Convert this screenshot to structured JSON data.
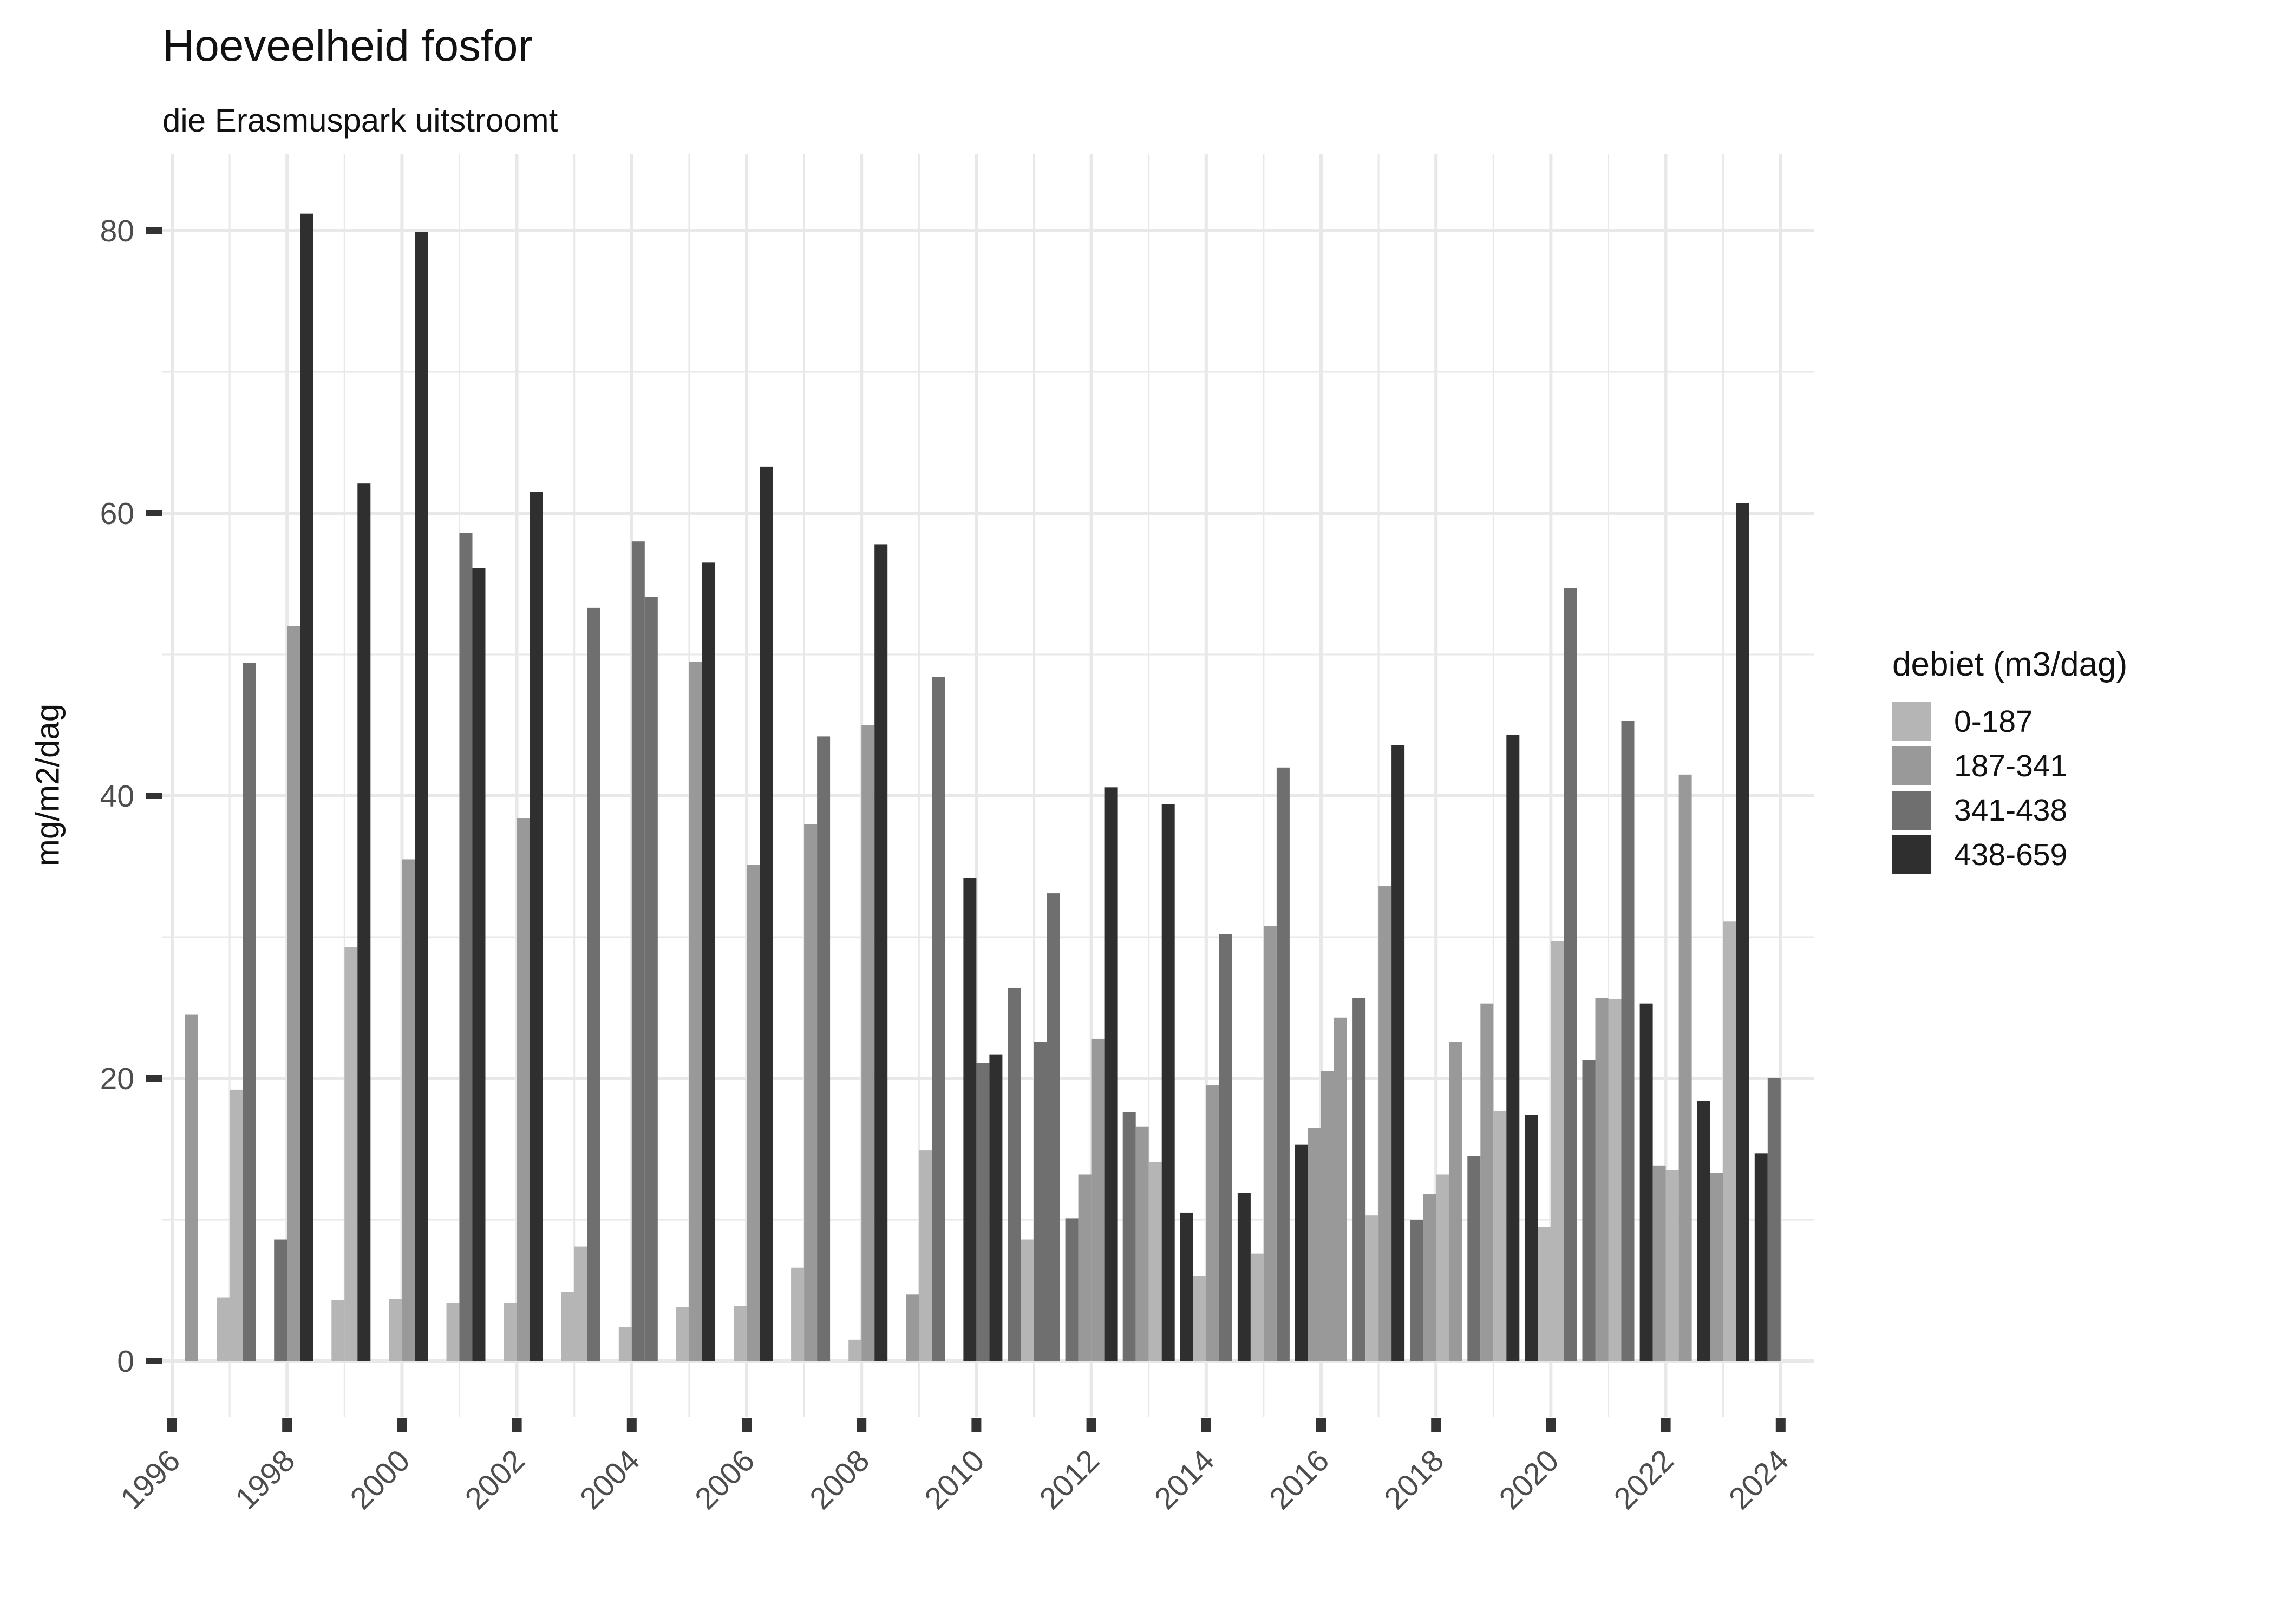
{
  "chart_data": {
    "type": "bar",
    "title": "Hoeveelheid fosfor",
    "subtitle": "die Erasmuspark uitstroomt",
    "xlabel": "",
    "ylabel": "mg/m2/dag",
    "ylim": [
      0,
      85
    ],
    "y_major_ticks": [
      0,
      20,
      40,
      60,
      80
    ],
    "y_minor_ticks": [
      10,
      30,
      50,
      70
    ],
    "x_tick_years": [
      1996,
      1998,
      2000,
      2002,
      2004,
      2006,
      2008,
      2010,
      2012,
      2014,
      2016,
      2018,
      2020,
      2022,
      2024
    ],
    "x_all_gridline_years": "every year 1996-2024, minor lines on odd years",
    "grid": true,
    "legend": {
      "title": "debiet (m3/dag)",
      "position": "right",
      "entries": [
        {
          "label": "0-187",
          "color": "#b5b5b5"
        },
        {
          "label": "187-341",
          "color": "#999999"
        },
        {
          "label": "341-438",
          "color": "#6f6f6f"
        },
        {
          "label": "438-659",
          "color": "#2f2f2f"
        }
      ]
    },
    "bar_note": "Each year holds up to 4 quarterly bars; slot = quarter position 1-4 within the year, cat = index into legend entries, value in mg/m2/dag",
    "years": [
      {
        "year": 1996,
        "bars": [
          {
            "slot": 4,
            "cat": 1,
            "value": 24.5
          }
        ]
      },
      {
        "year": 1997,
        "bars": [
          {
            "slot": 2,
            "cat": 0,
            "value": 4.5
          },
          {
            "slot": 3,
            "cat": 0,
            "value": 19.2
          },
          {
            "slot": 4,
            "cat": 2,
            "value": 49.4
          }
        ]
      },
      {
        "year": 1998,
        "bars": [
          {
            "slot": 2,
            "cat": 2,
            "value": 8.6
          },
          {
            "slot": 3,
            "cat": 1,
            "value": 52.0
          },
          {
            "slot": 4,
            "cat": 3,
            "value": 81.2
          }
        ]
      },
      {
        "year": 1999,
        "bars": [
          {
            "slot": 2,
            "cat": 0,
            "value": 4.3
          },
          {
            "slot": 3,
            "cat": 0,
            "value": 29.3
          },
          {
            "slot": 4,
            "cat": 3,
            "value": 62.1
          }
        ]
      },
      {
        "year": 2000,
        "bars": [
          {
            "slot": 2,
            "cat": 0,
            "value": 4.4
          },
          {
            "slot": 3,
            "cat": 1,
            "value": 35.5
          },
          {
            "slot": 4,
            "cat": 3,
            "value": 79.9
          }
        ]
      },
      {
        "year": 2001,
        "bars": [
          {
            "slot": 2,
            "cat": 0,
            "value": 4.1
          },
          {
            "slot": 3,
            "cat": 2,
            "value": 58.6
          },
          {
            "slot": 4,
            "cat": 3,
            "value": 56.1
          }
        ]
      },
      {
        "year": 2002,
        "bars": [
          {
            "slot": 2,
            "cat": 0,
            "value": 4.1
          },
          {
            "slot": 3,
            "cat": 1,
            "value": 38.4
          },
          {
            "slot": 4,
            "cat": 3,
            "value": 61.5
          }
        ]
      },
      {
        "year": 2003,
        "bars": [
          {
            "slot": 2,
            "cat": 0,
            "value": 4.9
          },
          {
            "slot": 3,
            "cat": 0,
            "value": 8.1
          },
          {
            "slot": 4,
            "cat": 2,
            "value": 53.3
          }
        ]
      },
      {
        "year": 2004,
        "bars": [
          {
            "slot": 2,
            "cat": 0,
            "value": 2.4
          },
          {
            "slot": 3,
            "cat": 2,
            "value": 58.0
          },
          {
            "slot": 4,
            "cat": 2,
            "value": 54.1
          }
        ]
      },
      {
        "year": 2005,
        "bars": [
          {
            "slot": 2,
            "cat": 0,
            "value": 3.8
          },
          {
            "slot": 3,
            "cat": 1,
            "value": 49.5
          },
          {
            "slot": 4,
            "cat": 3,
            "value": 56.5
          }
        ]
      },
      {
        "year": 2006,
        "bars": [
          {
            "slot": 2,
            "cat": 0,
            "value": 3.9
          },
          {
            "slot": 3,
            "cat": 1,
            "value": 35.1
          },
          {
            "slot": 4,
            "cat": 3,
            "value": 63.3
          }
        ]
      },
      {
        "year": 2007,
        "bars": [
          {
            "slot": 2,
            "cat": 0,
            "value": 6.6
          },
          {
            "slot": 3,
            "cat": 1,
            "value": 38.0
          },
          {
            "slot": 4,
            "cat": 2,
            "value": 44.2
          }
        ]
      },
      {
        "year": 2008,
        "bars": [
          {
            "slot": 2,
            "cat": 0,
            "value": 1.5
          },
          {
            "slot": 3,
            "cat": 1,
            "value": 45.0
          },
          {
            "slot": 4,
            "cat": 3,
            "value": 57.8
          }
        ]
      },
      {
        "year": 2009,
        "bars": [
          {
            "slot": 2,
            "cat": 1,
            "value": 4.7
          },
          {
            "slot": 3,
            "cat": 0,
            "value": 14.9
          },
          {
            "slot": 4,
            "cat": 2,
            "value": 48.4
          }
        ]
      },
      {
        "year": 2010,
        "bars": [
          {
            "slot": 2,
            "cat": 3,
            "value": 34.2
          },
          {
            "slot": 3,
            "cat": 2,
            "value": 21.1
          },
          {
            "slot": 4,
            "cat": 3,
            "value": 21.7
          }
        ]
      },
      {
        "year": 2011,
        "bars": [
          {
            "slot": 1,
            "cat": 2,
            "value": 26.4
          },
          {
            "slot": 2,
            "cat": 0,
            "value": 8.6
          },
          {
            "slot": 3,
            "cat": 2,
            "value": 22.6
          },
          {
            "slot": 4,
            "cat": 2,
            "value": 33.1
          }
        ]
      },
      {
        "year": 2012,
        "bars": [
          {
            "slot": 1,
            "cat": 2,
            "value": 10.1
          },
          {
            "slot": 2,
            "cat": 1,
            "value": 13.2
          },
          {
            "slot": 3,
            "cat": 1,
            "value": 22.8
          },
          {
            "slot": 4,
            "cat": 3,
            "value": 40.6
          }
        ]
      },
      {
        "year": 2013,
        "bars": [
          {
            "slot": 1,
            "cat": 2,
            "value": 17.6
          },
          {
            "slot": 2,
            "cat": 1,
            "value": 16.6
          },
          {
            "slot": 3,
            "cat": 0,
            "value": 14.1
          },
          {
            "slot": 4,
            "cat": 3,
            "value": 39.4
          }
        ]
      },
      {
        "year": 2014,
        "bars": [
          {
            "slot": 1,
            "cat": 3,
            "value": 10.5
          },
          {
            "slot": 2,
            "cat": 0,
            "value": 6.0
          },
          {
            "slot": 3,
            "cat": 1,
            "value": 19.5
          },
          {
            "slot": 4,
            "cat": 2,
            "value": 30.2
          }
        ]
      },
      {
        "year": 2015,
        "bars": [
          {
            "slot": 1,
            "cat": 3,
            "value": 11.9
          },
          {
            "slot": 2,
            "cat": 0,
            "value": 7.6
          },
          {
            "slot": 3,
            "cat": 1,
            "value": 30.8
          },
          {
            "slot": 4,
            "cat": 2,
            "value": 42.0
          }
        ]
      },
      {
        "year": 2016,
        "bars": [
          {
            "slot": 1,
            "cat": 3,
            "value": 15.3
          },
          {
            "slot": 2,
            "cat": 1,
            "value": 16.5
          },
          {
            "slot": 3,
            "cat": 1,
            "value": 20.5
          },
          {
            "slot": 4,
            "cat": 1,
            "value": 24.3
          }
        ]
      },
      {
        "year": 2017,
        "bars": [
          {
            "slot": 1,
            "cat": 2,
            "value": 25.7
          },
          {
            "slot": 2,
            "cat": 0,
            "value": 10.3
          },
          {
            "slot": 3,
            "cat": 1,
            "value": 33.6
          },
          {
            "slot": 4,
            "cat": 3,
            "value": 43.6
          }
        ]
      },
      {
        "year": 2018,
        "bars": [
          {
            "slot": 1,
            "cat": 2,
            "value": 10.0
          },
          {
            "slot": 2,
            "cat": 1,
            "value": 11.8
          },
          {
            "slot": 3,
            "cat": 0,
            "value": 13.2
          },
          {
            "slot": 4,
            "cat": 1,
            "value": 22.6
          }
        ]
      },
      {
        "year": 2019,
        "bars": [
          {
            "slot": 1,
            "cat": 2,
            "value": 14.5
          },
          {
            "slot": 2,
            "cat": 1,
            "value": 25.3
          },
          {
            "slot": 3,
            "cat": 0,
            "value": 17.7
          },
          {
            "slot": 4,
            "cat": 3,
            "value": 44.3
          }
        ]
      },
      {
        "year": 2020,
        "bars": [
          {
            "slot": 1,
            "cat": 3,
            "value": 17.4
          },
          {
            "slot": 2,
            "cat": 0,
            "value": 9.5
          },
          {
            "slot": 3,
            "cat": 0,
            "value": 29.7
          },
          {
            "slot": 4,
            "cat": 2,
            "value": 54.7
          }
        ]
      },
      {
        "year": 2021,
        "bars": [
          {
            "slot": 1,
            "cat": 2,
            "value": 21.3
          },
          {
            "slot": 2,
            "cat": 1,
            "value": 25.7
          },
          {
            "slot": 3,
            "cat": 0,
            "value": 25.6
          },
          {
            "slot": 4,
            "cat": 2,
            "value": 45.3
          }
        ]
      },
      {
        "year": 2022,
        "bars": [
          {
            "slot": 1,
            "cat": 3,
            "value": 25.3
          },
          {
            "slot": 2,
            "cat": 1,
            "value": 13.8
          },
          {
            "slot": 3,
            "cat": 0,
            "value": 13.5
          },
          {
            "slot": 4,
            "cat": 1,
            "value": 41.5
          }
        ]
      },
      {
        "year": 2023,
        "bars": [
          {
            "slot": 1,
            "cat": 3,
            "value": 18.4
          },
          {
            "slot": 2,
            "cat": 1,
            "value": 13.3
          },
          {
            "slot": 3,
            "cat": 0,
            "value": 31.1
          },
          {
            "slot": 4,
            "cat": 3,
            "value": 60.7
          }
        ]
      },
      {
        "year": 2024,
        "bars": [
          {
            "slot": 1,
            "cat": 3,
            "value": 14.7
          },
          {
            "slot": 2,
            "cat": 2,
            "value": 20.0
          }
        ]
      }
    ]
  }
}
